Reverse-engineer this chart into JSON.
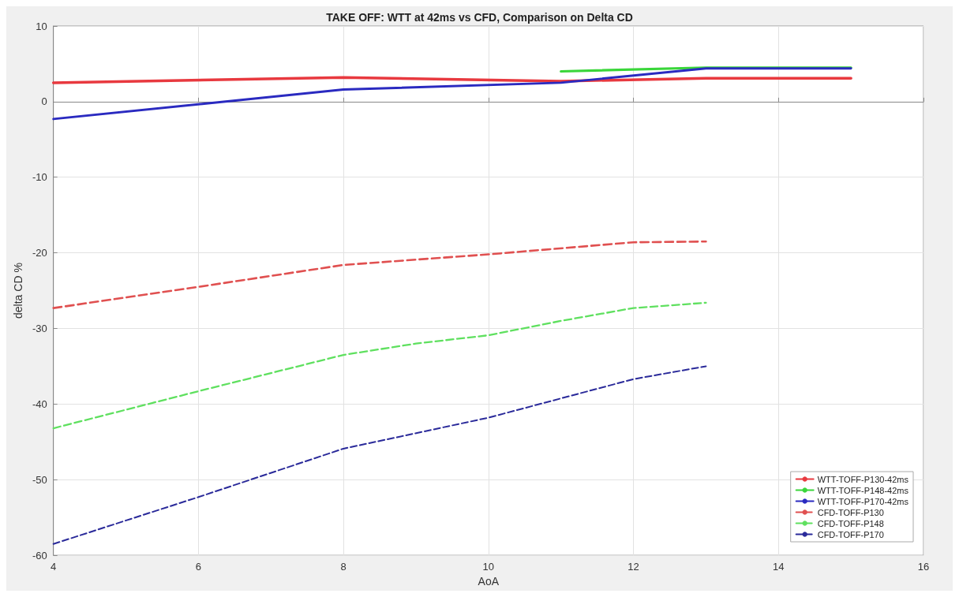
{
  "chart_data": {
    "type": "line",
    "title": "TAKE OFF: WTT at 42ms vs CFD, Comparison on Delta CD",
    "xlabel": "AoA",
    "ylabel": "delta CD %",
    "xlim": [
      4,
      16
    ],
    "xticks": [
      4,
      6,
      8,
      10,
      12,
      14,
      16
    ],
    "ylim": [
      -60,
      10
    ],
    "yticks": [
      -60,
      -50,
      -40,
      -30,
      -20,
      -10,
      0,
      10
    ],
    "grid": true,
    "legend": "bottom right",
    "series": [
      {
        "name": "WTT-TOFF-P130-42ms",
        "color": "#e8393f",
        "line_style": "solid",
        "x": [
          4,
          8,
          11,
          13,
          15
        ],
        "values": [
          2.5,
          3.2,
          2.7,
          3.1,
          3.1
        ]
      },
      {
        "name": "WTT-TOFF-P148-42ms",
        "color": "#3ad63a",
        "line_style": "solid",
        "x": [
          11,
          13,
          15
        ],
        "values": [
          4.0,
          4.5,
          4.5
        ]
      },
      {
        "name": "WTT-TOFF-P170-42ms",
        "color": "#2a2ac0",
        "line_style": "solid",
        "x": [
          4,
          8,
          11,
          13,
          15
        ],
        "values": [
          -2.3,
          1.6,
          2.5,
          4.4,
          4.4
        ]
      },
      {
        "name": "CFD-TOFF-P130",
        "color": "#e05050",
        "line_style": "dashed",
        "x": [
          4,
          6,
          8,
          10,
          12,
          13
        ],
        "values": [
          -27.3,
          -24.5,
          -21.6,
          -20.2,
          -18.6,
          -18.5
        ]
      },
      {
        "name": "CFD-TOFF-P148",
        "color": "#5fe05f",
        "line_style": "dashed",
        "x": [
          4,
          6,
          8,
          9,
          10,
          11,
          12,
          13
        ],
        "values": [
          -43.2,
          -38.3,
          -33.5,
          -32,
          -30.9,
          -29,
          -27.3,
          -26.6
        ]
      },
      {
        "name": "CFD-TOFF-P170",
        "color": "#2a2a9a",
        "line_style": "dashed",
        "x": [
          4,
          6,
          8,
          10,
          12,
          13
        ],
        "values": [
          -58.5,
          -52.3,
          -45.9,
          -41.8,
          -36.7,
          -35
        ]
      }
    ]
  }
}
